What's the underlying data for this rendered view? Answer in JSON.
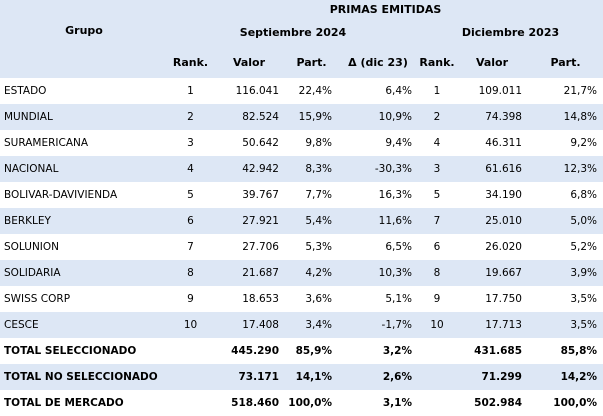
{
  "header": {
    "title": "PRIMAS EMITIDAS",
    "group_label": "Grupo",
    "period_current": "Septiembre 2024",
    "period_prev": "Diciembre 2023",
    "col_rank": "Rank.",
    "col_value": "Valor",
    "col_share": "Part.",
    "col_delta": "Δ (dic 23)",
    "col_rank2": "Rank.",
    "col_value2": "Valor",
    "col_share2": "Part."
  },
  "rows": [
    {
      "name": "ESTADO",
      "rank": "1",
      "value": "116.041",
      "share": "22,4%",
      "delta": "6,4%",
      "rank2": "1",
      "value2": "109.011",
      "share2": "21,7%"
    },
    {
      "name": "MUNDIAL",
      "rank": "2",
      "value": "82.524",
      "share": "15,9%",
      "delta": "10,9%",
      "rank2": "2",
      "value2": "74.398",
      "share2": "14,8%"
    },
    {
      "name": "SURAMERICANA",
      "rank": "3",
      "value": "50.642",
      "share": "9,8%",
      "delta": "9,4%",
      "rank2": "4",
      "value2": "46.311",
      "share2": "9,2%"
    },
    {
      "name": "NACIONAL",
      "rank": "4",
      "value": "42.942",
      "share": "8,3%",
      "delta": "-30,3%",
      "rank2": "3",
      "value2": "61.616",
      "share2": "12,3%"
    },
    {
      "name": "BOLIVAR-DAVIVIENDA",
      "rank": "5",
      "value": "39.767",
      "share": "7,7%",
      "delta": "16,3%",
      "rank2": "5",
      "value2": "34.190",
      "share2": "6,8%"
    },
    {
      "name": "BERKLEY",
      "rank": "6",
      "value": "27.921",
      "share": "5,4%",
      "delta": "11,6%",
      "rank2": "7",
      "value2": "25.010",
      "share2": "5,0%"
    },
    {
      "name": "SOLUNION",
      "rank": "7",
      "value": "27.706",
      "share": "5,3%",
      "delta": "6,5%",
      "rank2": "6",
      "value2": "26.020",
      "share2": "5,2%"
    },
    {
      "name": "SOLIDARIA",
      "rank": "8",
      "value": "21.687",
      "share": "4,2%",
      "delta": "10,3%",
      "rank2": "8",
      "value2": "19.667",
      "share2": "3,9%"
    },
    {
      "name": "SWISS CORP",
      "rank": "9",
      "value": "18.653",
      "share": "3,6%",
      "delta": "5,1%",
      "rank2": "9",
      "value2": "17.750",
      "share2": "3,5%"
    },
    {
      "name": "CESCE",
      "rank": "10",
      "value": "17.408",
      "share": "3,4%",
      "delta": "-1,7%",
      "rank2": "10",
      "value2": "17.713",
      "share2": "3,5%"
    }
  ],
  "totals": [
    {
      "name": "TOTAL SELECCIONADO",
      "value": "445.290",
      "share": "85,9%",
      "delta": "3,2%",
      "value2": "431.685",
      "share2": "85,8%"
    },
    {
      "name": "TOTAL NO SELECCIONADO",
      "value": "73.171",
      "share": "14,1%",
      "delta": "2,6%",
      "value2": "71.299",
      "share2": "14,2%"
    },
    {
      "name": "TOTAL DE MERCADO",
      "value": "518.460",
      "share": "100,0%",
      "delta": "3,1%",
      "value2": "502.984",
      "share2": "100,0%"
    }
  ]
}
